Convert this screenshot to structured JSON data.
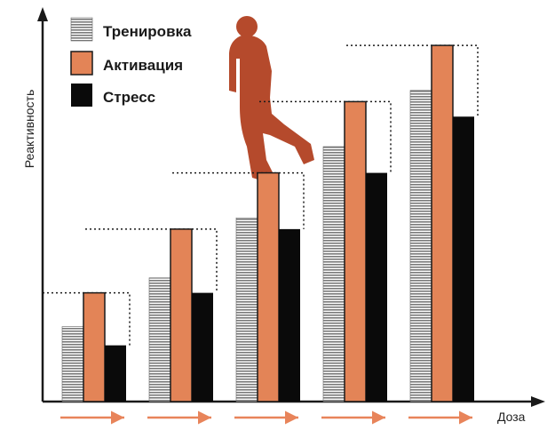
{
  "chart_data": {
    "type": "bar",
    "xlabel": "Доза",
    "ylabel": "Реактивность",
    "ylim": [
      0,
      100
    ],
    "categories": [
      "",
      "",
      "",
      "",
      ""
    ],
    "series": [
      {
        "name": "Тренировка",
        "values": [
          20,
          33,
          49,
          68,
          83
        ]
      },
      {
        "name": "Активация",
        "values": [
          29,
          46,
          61,
          80,
          95
        ]
      },
      {
        "name": "Стресс",
        "values": [
          15,
          29,
          46,
          61,
          76
        ]
      }
    ],
    "grid": false,
    "legend_position": "top-left",
    "colors": {
      "Тренировка": "#888888",
      "Активация": "#e38457",
      "Стресс": "#0a0a0a",
      "arrows": "#e8845a",
      "figure": "#b54a2c"
    },
    "annotations": [
      "dotted-step-outline",
      "dose-arrows",
      "walking-person-figure"
    ]
  }
}
